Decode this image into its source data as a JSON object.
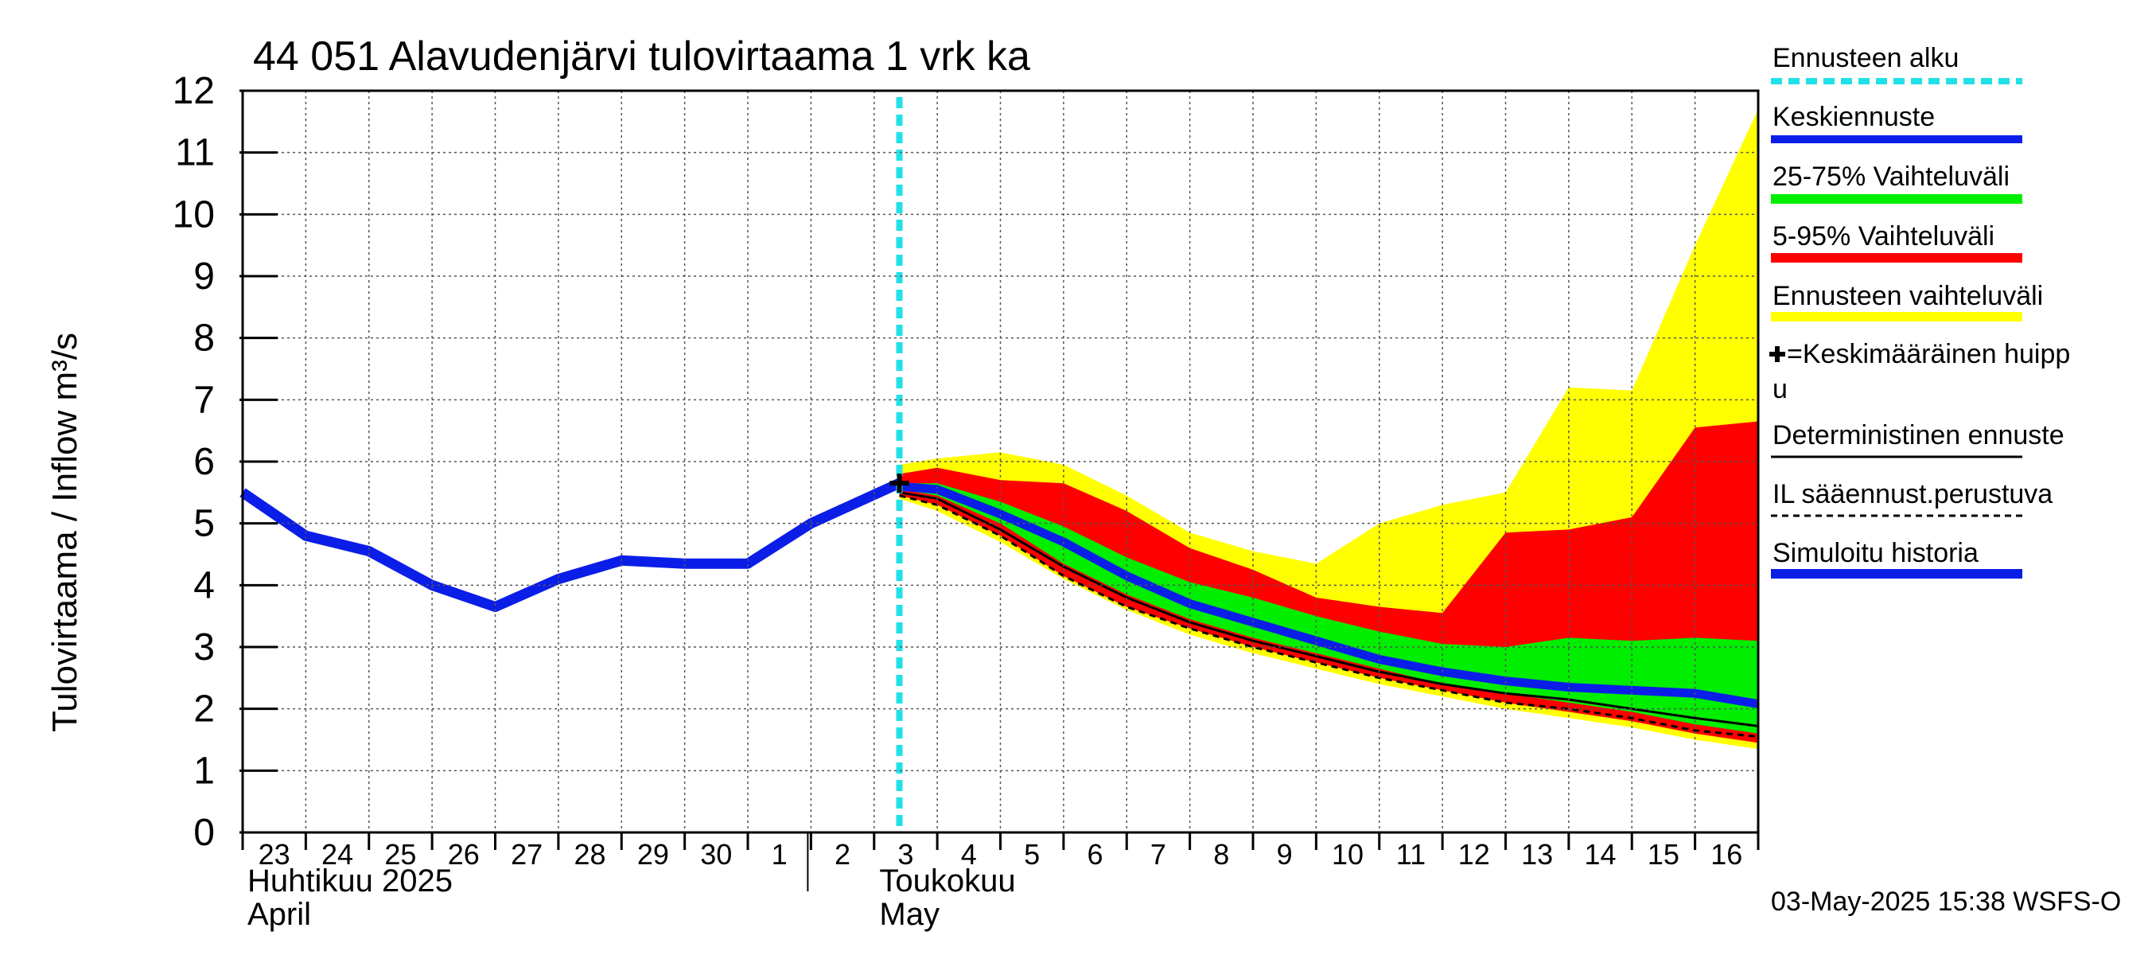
{
  "chart_data": {
    "type": "area",
    "title": "44 051 Alavudenjärvi tulovirtaama 1 vrk ka",
    "ylabel": "Tulovirtaama / Inflow    m³/s",
    "ylim": [
      0,
      12
    ],
    "yticks": [
      "0",
      "1",
      "2",
      "3",
      "4",
      "5",
      "6",
      "7",
      "8",
      "9",
      "10",
      "11",
      "12"
    ],
    "x_day_labels": [
      "23",
      "24",
      "25",
      "26",
      "27",
      "28",
      "29",
      "30",
      "1",
      "2",
      "3",
      "4",
      "5",
      "6",
      "7",
      "8",
      "9",
      "10",
      "11",
      "12",
      "13",
      "14",
      "15",
      "16"
    ],
    "month_labels": [
      {
        "fi": "Huhtikuu  2025",
        "en": "April",
        "start_day_index": 0
      },
      {
        "fi": "Toukokuu",
        "en": "May",
        "start_day_index": 9
      }
    ],
    "forecast_start_day": 10.4,
    "history": {
      "name": "Simuloitu historia",
      "x": [
        0,
        1,
        2,
        3,
        4,
        5,
        6,
        7,
        8,
        9,
        10.4
      ],
      "y": [
        5.5,
        4.8,
        4.55,
        4.0,
        3.65,
        4.1,
        4.4,
        4.35,
        4.35,
        5.0,
        5.65
      ]
    },
    "forecast_x": [
      10.4,
      11,
      12,
      13,
      14,
      15,
      16,
      17,
      18,
      19,
      20,
      21,
      22,
      23,
      24
    ],
    "band_total": {
      "name": "Ennusteen vaihteluväli",
      "upper": [
        5.95,
        6.05,
        6.15,
        5.95,
        5.45,
        4.85,
        4.55,
        4.35,
        5.0,
        5.3,
        5.5,
        7.2,
        7.15,
        9.5,
        11.7
      ],
      "lower": [
        5.4,
        5.2,
        4.7,
        4.1,
        3.6,
        3.2,
        2.9,
        2.65,
        2.4,
        2.2,
        2.0,
        1.85,
        1.7,
        1.5,
        1.35
      ]
    },
    "band_5_95": {
      "name": "5-95% Vaihteluväli",
      "upper": [
        5.8,
        5.9,
        5.7,
        5.65,
        5.2,
        4.6,
        4.25,
        3.8,
        3.65,
        3.55,
        4.85,
        4.9,
        5.1,
        6.55,
        6.65
      ],
      "lower": [
        5.45,
        5.3,
        4.8,
        4.15,
        3.65,
        3.3,
        3.0,
        2.75,
        2.5,
        2.3,
        2.1,
        1.95,
        1.8,
        1.6,
        1.45
      ]
    },
    "band_25_75": {
      "name": "25-75% Vaihteluväli",
      "upper": [
        5.65,
        5.65,
        5.35,
        4.95,
        4.45,
        4.05,
        3.8,
        3.5,
        3.25,
        3.05,
        3.0,
        3.15,
        3.1,
        3.15,
        3.1
      ],
      "lower": [
        5.55,
        5.45,
        5.0,
        4.35,
        3.85,
        3.45,
        3.15,
        2.9,
        2.65,
        2.4,
        2.25,
        2.1,
        1.95,
        1.75,
        1.6
      ]
    },
    "median": {
      "name": "Keskiennuste",
      "y": [
        5.6,
        5.55,
        5.15,
        4.7,
        4.15,
        3.7,
        3.4,
        3.1,
        2.8,
        2.6,
        2.45,
        2.35,
        2.3,
        2.25,
        2.08
      ]
    },
    "deterministic": {
      "name": "Deterministinen ennuste",
      "y": [
        5.5,
        5.4,
        4.9,
        4.3,
        3.8,
        3.4,
        3.1,
        2.85,
        2.6,
        2.4,
        2.25,
        2.15,
        2.0,
        1.85,
        1.72
      ]
    },
    "il_forecast": {
      "name": "IL sääennust.perustuva",
      "y": [
        5.45,
        5.3,
        4.8,
        4.15,
        3.65,
        3.3,
        3.0,
        2.75,
        2.5,
        2.3,
        2.1,
        2.0,
        1.85,
        1.65,
        1.55
      ]
    },
    "mean_peak": {
      "x": 10.4,
      "y": 5.65
    },
    "legend": [
      "Ennusteen alku",
      "Keskiennuste",
      "25-75% Vaihteluväli",
      "5-95% Vaihteluväli",
      "Ennusteen vaihteluväli",
      "=Keskimääräinen huipp",
      "u",
      "Deterministinen ennuste",
      "IL sääennust.perustuva",
      "Simuloitu historia"
    ],
    "colors": {
      "forecast_start": "#22e0e8",
      "median": "#0a1ee8",
      "band_25_75": "#00ee00",
      "band_5_95": "#ff0000",
      "band_total": "#ffff00",
      "deterministic": "#000000",
      "il": "#000000",
      "history": "#0a1ee8"
    }
  },
  "footer": "03-May-2025 15:38 WSFS-O"
}
